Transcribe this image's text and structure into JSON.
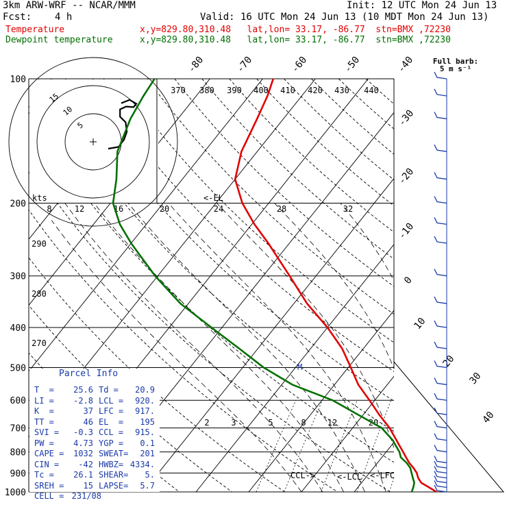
{
  "header": {
    "model": "3km ARW-WRF -- NCAR/MMM",
    "init": "Init: 12 UTC Mon 24 Jun 13",
    "fcst_label": "Fcst:",
    "fcst_value": "4 h",
    "valid": "Valid: 16 UTC Mon 24 Jun 13 (10 MDT Mon 24 Jun 13)",
    "legend_temp_name": "Temperature",
    "legend_temp_info": "x,y=829.80,310.48   lat,lon= 33.17, -86.77  stn=BMX ,72230",
    "legend_dew_name": "Dewpoint temperature",
    "legend_dew_info": "x,y=829.80,310.48   lat,lon= 33.17, -86.77  stn=BMX ,72230"
  },
  "chart_data": {
    "type": "line",
    "subtype": "skew-T log-P sounding",
    "y_axis": {
      "label": "",
      "scale": "log",
      "ticks": [
        100,
        200,
        300,
        400,
        500,
        600,
        700,
        800,
        900,
        1000
      ],
      "range": [
        1000,
        100
      ]
    },
    "isotherm_labels": [
      "-80",
      "-70",
      "-60",
      "-50",
      "-40",
      "-30",
      "-20",
      "-10",
      "0",
      "10",
      "20",
      "30",
      "40"
    ],
    "theta_labels": [
      "370",
      "380",
      "390",
      "400",
      "410",
      "420",
      "430",
      "440"
    ],
    "theta_side_labels": [
      "290",
      "280",
      "270"
    ],
    "mixing_ratio_labels": [
      "2",
      "3",
      "5",
      "8",
      "12",
      "20"
    ],
    "wind_scale_label": "kts",
    "hodograph_axis_labels": [
      "8",
      "12",
      "16",
      "20",
      "24",
      "28",
      "32"
    ],
    "hodograph_ring_labels": [
      "15",
      "10",
      "5"
    ],
    "series": [
      {
        "name": "Temperature",
        "color": "#e00000",
        "points": [
          [
            1000,
            25.6
          ],
          [
            975,
            23.5
          ],
          [
            950,
            21.3
          ],
          [
            925,
            20.0
          ],
          [
            900,
            19.0
          ],
          [
            875,
            17.6
          ],
          [
            850,
            16.0
          ],
          [
            825,
            14.6
          ],
          [
            800,
            13.2
          ],
          [
            775,
            11.7
          ],
          [
            750,
            10.2
          ],
          [
            700,
            7.0
          ],
          [
            650,
            3.0
          ],
          [
            600,
            -1.0
          ],
          [
            550,
            -5.5
          ],
          [
            500,
            -9.5
          ],
          [
            450,
            -14.0
          ],
          [
            400,
            -20.0
          ],
          [
            350,
            -27.5
          ],
          [
            300,
            -35.0
          ],
          [
            250,
            -44.0
          ],
          [
            225,
            -49.5
          ],
          [
            200,
            -55.0
          ],
          [
            175,
            -60.0
          ],
          [
            150,
            -63.0
          ],
          [
            125,
            -65.0
          ],
          [
            110,
            -66.5
          ],
          [
            100,
            -68.0
          ]
        ]
      },
      {
        "name": "Dewpoint temperature",
        "color": "#007000",
        "points": [
          [
            1000,
            20.9
          ],
          [
            975,
            20.5
          ],
          [
            950,
            20.0
          ],
          [
            925,
            19.0
          ],
          [
            900,
            18.0
          ],
          [
            875,
            17.0
          ],
          [
            850,
            15.5
          ],
          [
            825,
            13.6
          ],
          [
            800,
            12.5
          ],
          [
            775,
            11.0
          ],
          [
            750,
            9.5
          ],
          [
            700,
            5.5
          ],
          [
            650,
            -1.0
          ],
          [
            600,
            -8.0
          ],
          [
            550,
            -18.0
          ],
          [
            500,
            -26.0
          ],
          [
            450,
            -33.5
          ],
          [
            400,
            -42.0
          ],
          [
            350,
            -51.5
          ],
          [
            300,
            -60.5
          ],
          [
            270,
            -66.0
          ],
          [
            250,
            -70.0
          ],
          [
            225,
            -75.0
          ],
          [
            200,
            -79.5
          ],
          [
            175,
            -82.5
          ],
          [
            150,
            -86.5
          ],
          [
            125,
            -89.0
          ],
          [
            110,
            -90.0
          ],
          [
            100,
            -90.5
          ]
        ]
      }
    ],
    "level_markers": [
      {
        "label": "<-EL",
        "pressure": 195
      },
      {
        "label": "CCL->",
        "pressure": 915
      },
      {
        "label": "<-LCL",
        "pressure": 920
      },
      {
        "label": "<-LFC",
        "pressure": 917
      },
      {
        "label": "M",
        "pressure": 500
      }
    ],
    "wind_barbs_title": "Full barb:",
    "wind_barbs_subtitle": "5 m s⁻¹",
    "wind_barb_levels": [
      1000,
      975,
      950,
      925,
      900,
      875,
      850,
      800,
      750,
      700,
      650,
      600,
      550,
      500,
      450,
      400,
      350,
      300,
      250,
      225,
      200,
      175,
      150,
      125,
      110,
      100
    ],
    "hodograph_trace": [
      [
        0,
        0
      ],
      [
        1.8,
        0.3
      ],
      [
        2.8,
        1.6
      ],
      [
        3.3,
        3.0
      ],
      [
        3.1,
        4.7
      ],
      [
        2.1,
        5.7
      ],
      [
        2.1,
        7.0
      ],
      [
        3.2,
        7.5
      ],
      [
        4.5,
        7.4
      ],
      [
        5.0,
        8.0
      ],
      [
        3.8,
        8.7
      ],
      [
        2.3,
        8.1
      ]
    ],
    "grid": true
  },
  "parcel_info": {
    "title": "Parcel Info",
    "rows": [
      [
        "T  =",
        "25.6",
        "Td =",
        "20.9"
      ],
      [
        "LI =",
        "-2.8",
        "LCL =",
        "920."
      ],
      [
        "K  =",
        "37",
        "LFC =",
        "917."
      ],
      [
        "TT =",
        "46",
        "EL  =",
        "195"
      ],
      [
        "SVI =",
        "-0.3",
        "CCL =",
        "915."
      ],
      [
        "PW =",
        "4.73",
        "YGP =",
        "0.1"
      ],
      [
        "CAPE =",
        "1032",
        "SWEAT=",
        "201"
      ],
      [
        "CIN =",
        "-42",
        "HWBZ=",
        "4334."
      ],
      [
        "Tc =",
        "26.1",
        "SHEAR=",
        "5."
      ],
      [
        "SREH =",
        "15",
        "LAPSE=",
        "5.7"
      ],
      [
        "CELL =",
        "231/08",
        "",
        ""
      ]
    ]
  }
}
